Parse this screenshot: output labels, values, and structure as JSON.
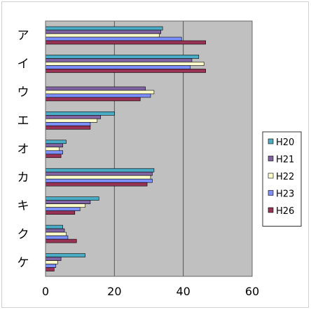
{
  "chart_data": {
    "type": "bar",
    "orientation": "horizontal",
    "categories": [
      "ア",
      "イ",
      "ウ",
      "エ",
      "オ",
      "カ",
      "キ",
      "ク",
      "ケ"
    ],
    "series": [
      {
        "name": "H20",
        "color": "#4bacc6",
        "values": [
          34,
          44.5,
          0,
          20,
          6,
          31.5,
          15.5,
          5,
          11.5
        ]
      },
      {
        "name": "H21",
        "color": "#8064a2",
        "values": [
          33.5,
          42.5,
          29,
          16,
          5,
          31,
          13,
          5.5,
          4.5
        ]
      },
      {
        "name": "H22",
        "color": "#ffffcc",
        "values": [
          33,
          46,
          31.5,
          15,
          4,
          30.5,
          11.5,
          6,
          3.5
        ]
      },
      {
        "name": "H23",
        "color": "#7b8ffd",
        "values": [
          39.5,
          42,
          30.5,
          13,
          5,
          31,
          10,
          6.5,
          3
        ]
      },
      {
        "name": "H26",
        "color": "#993355",
        "values": [
          46.5,
          46.5,
          27.5,
          13,
          4.5,
          29.5,
          8.5,
          9,
          2.5
        ]
      }
    ],
    "xlim": [
      0,
      60
    ],
    "xticks": [
      "0",
      "20",
      "40",
      "60"
    ],
    "grid": true,
    "plot_background": "#c0c0c0",
    "legend_position": "right"
  }
}
